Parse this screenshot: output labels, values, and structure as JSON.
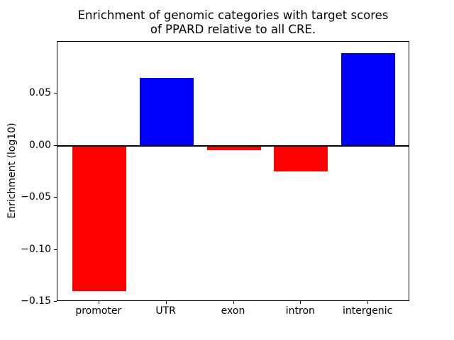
{
  "chart_data": {
    "type": "bar",
    "title": "Enrichment of genomic categories with target scores\nof PPARD relative to all CRE.",
    "xlabel": "",
    "ylabel": "Enrichment (log10)",
    "categories": [
      "promoter",
      "UTR",
      "exon",
      "intron",
      "intergenic"
    ],
    "values": [
      -0.14,
      0.065,
      -0.004,
      -0.025,
      0.089
    ],
    "bar_colors": [
      "#ff0000",
      "#0000ff",
      "#ff0000",
      "#ff0000",
      "#0000ff"
    ],
    "positive_color": "#0000ff",
    "negative_color": "#ff0000",
    "ylim": [
      -0.15,
      0.1
    ],
    "yticks": [
      0.05,
      0.0,
      -0.05,
      -0.1,
      -0.15
    ],
    "ytick_labels": [
      "0.05",
      "0.00",
      "−0.05",
      "−0.10",
      "−0.15"
    ],
    "zero_line": true,
    "grid": false,
    "legend": null,
    "axis_color": "#000000",
    "background_color": "#ffffff"
  }
}
